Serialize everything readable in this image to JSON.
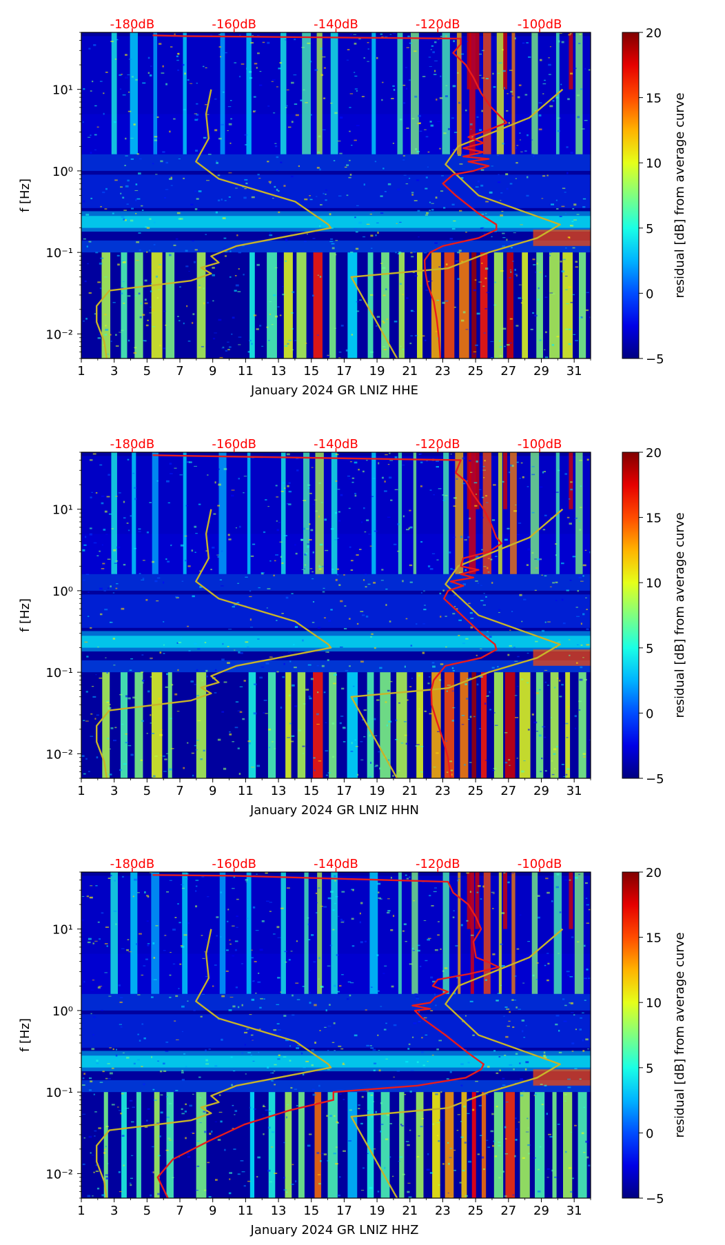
{
  "colors": {
    "db_axis_text": "#ff0000",
    "psd_curve": "#e81c1c",
    "noise_model_curve": "#c8b429",
    "frame": "#000000"
  },
  "colormap": "jet",
  "chart_data": [
    {
      "type": "heatmap",
      "xlabel": "January 2024 GR LNIZ  HHE",
      "ylabel": "f [Hz]",
      "colorbar_label": "residual [dB] from average curve",
      "colorbar_range": [
        -5,
        20
      ],
      "colorbar_ticks": [
        "−5",
        "0",
        "5",
        "10",
        "15",
        "20"
      ],
      "x_range": [
        1,
        32
      ],
      "x_ticks": [
        "1",
        "3",
        "5",
        "7",
        "9",
        "11",
        "13",
        "15",
        "17",
        "19",
        "21",
        "23",
        "25",
        "27",
        "29",
        "31"
      ],
      "y_scale": "log",
      "y_range_hz": [
        0.005,
        50
      ],
      "y_ticks": [
        "10⁻²",
        "10⁻¹",
        "10⁰",
        "10¹"
      ],
      "top_axis": {
        "range_db": [
          -190,
          -90
        ],
        "ticks": [
          "-180dB",
          "-160dB",
          "-140dB",
          "-120dB",
          "-100dB"
        ]
      },
      "psd_curve": {
        "points": [
          [
            -119.5,
            0.005
          ],
          [
            -119.8,
            0.009
          ],
          [
            -120.2,
            0.015
          ],
          [
            -120.8,
            0.025
          ],
          [
            -122.0,
            0.04
          ],
          [
            -122.5,
            0.06
          ],
          [
            -122.6,
            0.08
          ],
          [
            -121.5,
            0.1
          ],
          [
            -119.0,
            0.12
          ],
          [
            -112.0,
            0.15
          ],
          [
            -108.5,
            0.19
          ],
          [
            -108.5,
            0.22
          ],
          [
            -112.0,
            0.3
          ],
          [
            -116.5,
            0.5
          ],
          [
            -119.0,
            0.7
          ],
          [
            -117.0,
            0.9
          ],
          [
            -113.0,
            1.0
          ],
          [
            -110.0,
            1.15
          ],
          [
            -114.0,
            1.3
          ],
          [
            -110.0,
            1.4
          ],
          [
            -115.0,
            1.5
          ],
          [
            -111.0,
            1.7
          ],
          [
            -115.0,
            1.9
          ],
          [
            -111.0,
            2.2
          ],
          [
            -114.0,
            2.6
          ],
          [
            -110.0,
            3.2
          ],
          [
            -106.5,
            3.9
          ],
          [
            -107.5,
            4.5
          ],
          [
            -109.5,
            6.0
          ],
          [
            -111.5,
            9.0
          ],
          [
            -113.0,
            14.0
          ],
          [
            -114.5,
            20.0
          ],
          [
            -117.0,
            28.0
          ],
          [
            -115.5,
            36.0
          ],
          [
            -115.5,
            42.0
          ],
          [
            -170.0,
            45.0
          ],
          [
            -176.0,
            46.0
          ]
        ]
      },
      "noise_model_curve": {
        "points": [
          [
            -185.0,
            0.005
          ],
          [
            -185.5,
            0.008
          ],
          [
            -187.0,
            0.014
          ],
          [
            -187.0,
            0.022
          ],
          [
            -184.5,
            0.034
          ],
          [
            -168.5,
            0.045
          ],
          [
            -164.5,
            0.055
          ],
          [
            -166.5,
            0.065
          ],
          [
            -163.0,
            0.075
          ],
          [
            -164.5,
            0.09
          ],
          [
            -159.5,
            0.12
          ],
          [
            -141.0,
            0.2
          ],
          [
            -141.5,
            0.22
          ],
          [
            -148.0,
            0.42
          ],
          [
            -163.0,
            0.8
          ],
          [
            -167.5,
            1.3
          ],
          [
            -165.0,
            2.5
          ],
          [
            -165.5,
            5.0
          ],
          [
            -164.5,
            10.0
          ]
        ]
      },
      "noise_model_curve_2": {
        "points": [
          [
            -128.0,
            0.005
          ],
          [
            -137.0,
            0.05
          ],
          [
            -119.0,
            0.063
          ],
          [
            -118.0,
            0.064
          ],
          [
            -110.0,
            0.1
          ],
          [
            -100.5,
            0.15
          ],
          [
            -96.0,
            0.22
          ],
          [
            -112.0,
            0.5
          ],
          [
            -118.5,
            1.2
          ],
          [
            -116.0,
            2.0
          ],
          [
            -102.0,
            4.5
          ],
          [
            -95.5,
            10.0
          ]
        ]
      }
    },
    {
      "type": "heatmap",
      "xlabel": "January 2024 GR LNIZ  HHN",
      "ylabel": "f [Hz]",
      "colorbar_label": "residual [dB] from average curve",
      "colorbar_range": [
        -5,
        20
      ],
      "colorbar_ticks": [
        "−5",
        "0",
        "5",
        "10",
        "15",
        "20"
      ],
      "x_range": [
        1,
        32
      ],
      "x_ticks": [
        "1",
        "3",
        "5",
        "7",
        "9",
        "11",
        "13",
        "15",
        "17",
        "19",
        "21",
        "23",
        "25",
        "27",
        "29",
        "31"
      ],
      "y_scale": "log",
      "y_range_hz": [
        0.005,
        50
      ],
      "y_ticks": [
        "10⁻²",
        "10⁻¹",
        "10⁰",
        "10¹"
      ],
      "top_axis": {
        "range_db": [
          -190,
          -90
        ],
        "ticks": [
          "-180dB",
          "-160dB",
          "-140dB",
          "-120dB",
          "-100dB"
        ]
      },
      "psd_curve": {
        "points": [
          [
            -117.5,
            0.005
          ],
          [
            -118.0,
            0.009
          ],
          [
            -119.0,
            0.015
          ],
          [
            -120.2,
            0.025
          ],
          [
            -121.2,
            0.04
          ],
          [
            -121.3,
            0.06
          ],
          [
            -120.8,
            0.08
          ],
          [
            -118.5,
            0.12
          ],
          [
            -111.5,
            0.15
          ],
          [
            -108.5,
            0.19
          ],
          [
            -108.8,
            0.22
          ],
          [
            -111.5,
            0.3
          ],
          [
            -116.0,
            0.55
          ],
          [
            -118.8,
            0.8
          ],
          [
            -118.0,
            1.0
          ],
          [
            -115.0,
            1.15
          ],
          [
            -117.5,
            1.3
          ],
          [
            -113.0,
            1.45
          ],
          [
            -115.5,
            1.6
          ],
          [
            -112.0,
            1.8
          ],
          [
            -115.5,
            2.0
          ],
          [
            -115.0,
            2.5
          ],
          [
            -110.0,
            3.0
          ],
          [
            -107.5,
            3.8
          ],
          [
            -108.5,
            4.5
          ],
          [
            -109.5,
            6.5
          ],
          [
            -111.0,
            10.0
          ],
          [
            -113.0,
            15.0
          ],
          [
            -114.5,
            22.0
          ],
          [
            -116.5,
            28.0
          ],
          [
            -115.5,
            40.0
          ],
          [
            -168.0,
            45.0
          ],
          [
            -176.0,
            46.0
          ]
        ]
      },
      "noise_model_curve": {
        "points": [
          [
            -185.0,
            0.005
          ],
          [
            -185.5,
            0.008
          ],
          [
            -187.0,
            0.014
          ],
          [
            -187.0,
            0.022
          ],
          [
            -184.5,
            0.034
          ],
          [
            -168.5,
            0.045
          ],
          [
            -164.5,
            0.055
          ],
          [
            -166.5,
            0.065
          ],
          [
            -163.0,
            0.075
          ],
          [
            -164.5,
            0.09
          ],
          [
            -159.5,
            0.12
          ],
          [
            -141.0,
            0.2
          ],
          [
            -141.5,
            0.22
          ],
          [
            -148.0,
            0.42
          ],
          [
            -163.0,
            0.8
          ],
          [
            -167.5,
            1.3
          ],
          [
            -165.0,
            2.5
          ],
          [
            -165.5,
            5.0
          ],
          [
            -164.5,
            10.0
          ]
        ]
      },
      "noise_model_curve_2": {
        "points": [
          [
            -128.0,
            0.005
          ],
          [
            -137.0,
            0.05
          ],
          [
            -119.0,
            0.063
          ],
          [
            -118.0,
            0.064
          ],
          [
            -110.0,
            0.1
          ],
          [
            -100.5,
            0.15
          ],
          [
            -96.0,
            0.22
          ],
          [
            -112.0,
            0.5
          ],
          [
            -118.5,
            1.2
          ],
          [
            -116.0,
            2.0
          ],
          [
            -102.0,
            4.5
          ],
          [
            -95.5,
            10.0
          ]
        ]
      }
    },
    {
      "type": "heatmap",
      "xlabel": "January 2024 GR LNIZ  HHZ",
      "ylabel": "f [Hz]",
      "colorbar_label": "residual [dB] from average curve",
      "colorbar_range": [
        -5,
        20
      ],
      "colorbar_ticks": [
        "−5",
        "0",
        "5",
        "10",
        "15",
        "20"
      ],
      "x_range": [
        1,
        32
      ],
      "x_ticks": [
        "1",
        "3",
        "5",
        "7",
        "9",
        "11",
        "13",
        "15",
        "17",
        "19",
        "21",
        "23",
        "25",
        "27",
        "29",
        "31"
      ],
      "y_scale": "log",
      "y_range_hz": [
        0.005,
        50
      ],
      "y_ticks": [
        "10⁻²",
        "10⁻¹",
        "10⁰",
        "10¹"
      ],
      "top_axis": {
        "range_db": [
          -190,
          -90
        ],
        "ticks": [
          "-180dB",
          "-160dB",
          "-140dB",
          "-120dB",
          "-100dB"
        ]
      },
      "psd_curve": {
        "points": [
          [
            -173.0,
            0.005
          ],
          [
            -175.0,
            0.009
          ],
          [
            -172.0,
            0.015
          ],
          [
            -165.0,
            0.025
          ],
          [
            -158.0,
            0.04
          ],
          [
            -149.0,
            0.06
          ],
          [
            -140.5,
            0.08
          ],
          [
            -140.5,
            0.1
          ],
          [
            -124.0,
            0.12
          ],
          [
            -114.5,
            0.15
          ],
          [
            -111.5,
            0.19
          ],
          [
            -111.0,
            0.22
          ],
          [
            -114.0,
            0.3
          ],
          [
            -118.5,
            0.5
          ],
          [
            -123.0,
            0.8
          ],
          [
            -124.5,
            1.0
          ],
          [
            -121.5,
            1.05
          ],
          [
            -125.0,
            1.15
          ],
          [
            -121.5,
            1.25
          ],
          [
            -120.5,
            1.45
          ],
          [
            -118.0,
            1.7
          ],
          [
            -121.0,
            2.0
          ],
          [
            -120.0,
            2.4
          ],
          [
            -114.0,
            2.8
          ],
          [
            -108.0,
            3.4
          ],
          [
            -110.0,
            3.9
          ],
          [
            -112.5,
            4.5
          ],
          [
            -113.0,
            7.0
          ],
          [
            -111.5,
            10.0
          ],
          [
            -112.5,
            14.0
          ],
          [
            -114.0,
            20.0
          ],
          [
            -117.0,
            28.0
          ],
          [
            -118.0,
            38.0
          ],
          [
            -160.0,
            45.0
          ],
          [
            -176.0,
            46.0
          ]
        ]
      },
      "noise_model_curve": {
        "points": [
          [
            -185.0,
            0.005
          ],
          [
            -185.5,
            0.008
          ],
          [
            -187.0,
            0.014
          ],
          [
            -187.0,
            0.022
          ],
          [
            -184.5,
            0.034
          ],
          [
            -168.5,
            0.045
          ],
          [
            -164.5,
            0.055
          ],
          [
            -166.5,
            0.065
          ],
          [
            -163.0,
            0.075
          ],
          [
            -164.5,
            0.09
          ],
          [
            -159.5,
            0.12
          ],
          [
            -141.0,
            0.2
          ],
          [
            -141.5,
            0.22
          ],
          [
            -148.0,
            0.42
          ],
          [
            -163.0,
            0.8
          ],
          [
            -167.5,
            1.3
          ],
          [
            -165.0,
            2.5
          ],
          [
            -165.5,
            5.0
          ],
          [
            -164.5,
            10.0
          ]
        ]
      },
      "noise_model_curve_2": {
        "points": [
          [
            -128.0,
            0.005
          ],
          [
            -137.0,
            0.05
          ],
          [
            -119.0,
            0.063
          ],
          [
            -118.0,
            0.064
          ],
          [
            -110.0,
            0.1
          ],
          [
            -100.5,
            0.15
          ],
          [
            -96.0,
            0.22
          ],
          [
            -112.0,
            0.5
          ],
          [
            -118.5,
            1.2
          ],
          [
            -116.0,
            2.0
          ],
          [
            -102.0,
            4.5
          ],
          [
            -95.5,
            10.0
          ]
        ]
      }
    }
  ]
}
